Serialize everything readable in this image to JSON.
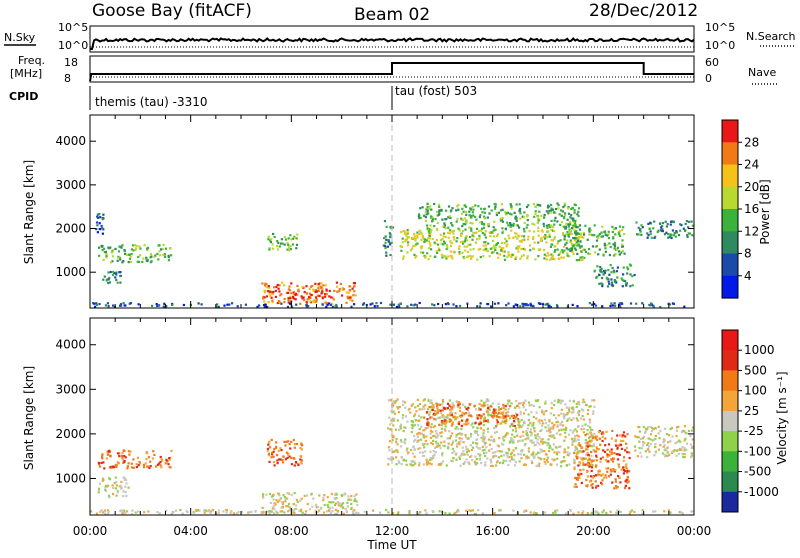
{
  "header": {
    "station": "Goose Bay (fitACF)",
    "beam": "Beam 02",
    "date": "28/Dec/2012"
  },
  "status_panels": {
    "nsky_label": "N.Sky",
    "nsearch_label": "N.Search",
    "freq_label_1": "Freq.",
    "freq_label_2": "[MHz]",
    "nave_label": "Nave",
    "cpid_label": "CPID",
    "noise_ticks": [
      "10^5",
      "10^0"
    ],
    "freq_ticks": [
      "18",
      "8"
    ],
    "nave_ticks": [
      "60",
      "0"
    ],
    "cpid_segments": [
      {
        "label": "themis (tau) -3310",
        "start_hour": 0,
        "end_hour": 12
      },
      {
        "label": "tau (fost) 503",
        "start_hour": 12,
        "end_hour": 24
      }
    ]
  },
  "chart_data": [
    {
      "type": "heatmap",
      "name": "power",
      "ylabel": "Slant Range [km]",
      "xlim": [
        0,
        24
      ],
      "ylim": [
        180,
        4600
      ],
      "colorbar_label": "Power [dB]",
      "colorbar_ticks": [
        "28",
        "24",
        "20",
        "16",
        "12",
        "8",
        "4"
      ],
      "colors": [
        "#0018e8",
        "#1c4aa8",
        "#2f8a5f",
        "#3bb33a",
        "#b9d930",
        "#f4c21a",
        "#f07a15",
        "#e81818"
      ],
      "regions": [
        {
          "t0": 0.3,
          "t1": 3.2,
          "r0": 1250,
          "r1": 1650,
          "level": 3
        },
        {
          "t0": 0.3,
          "t1": 1.2,
          "r0": 750,
          "r1": 1050,
          "level": 2
        },
        {
          "t0": 0.2,
          "t1": 0.5,
          "r0": 1900,
          "r1": 2400,
          "level": 1
        },
        {
          "t0": 6.8,
          "t1": 10.6,
          "r0": 300,
          "r1": 800,
          "level": 6
        },
        {
          "t0": 7.8,
          "t1": 9.6,
          "r0": 420,
          "r1": 620,
          "level": 7
        },
        {
          "t0": 7.0,
          "t1": 8.2,
          "r0": 1500,
          "r1": 1900,
          "level": 3
        },
        {
          "t0": 11.6,
          "t1": 12.0,
          "r0": 1400,
          "r1": 2200,
          "level": 2
        },
        {
          "t0": 12.3,
          "t1": 19.6,
          "r0": 1300,
          "r1": 2000,
          "level": 4
        },
        {
          "t0": 13.0,
          "t1": 19.4,
          "r0": 2000,
          "r1": 2600,
          "level": 3
        },
        {
          "t0": 18.8,
          "t1": 21.2,
          "r0": 1400,
          "r1": 2100,
          "level": 3
        },
        {
          "t0": 20.0,
          "t1": 21.6,
          "r0": 700,
          "r1": 1200,
          "level": 2
        },
        {
          "t0": 21.6,
          "t1": 24.0,
          "r0": 1800,
          "r1": 2200,
          "level": 2
        },
        {
          "t0": 0.0,
          "t1": 24.0,
          "r0": 200,
          "r1": 320,
          "level": 1
        }
      ]
    },
    {
      "type": "heatmap",
      "name": "velocity",
      "ylabel": "Slant Range [km]",
      "xlabel": "Time UT",
      "xlim": [
        0,
        24
      ],
      "ylim": [
        180,
        4600
      ],
      "colorbar_label": "Velocity [m s⁻¹]",
      "colorbar_ticks": [
        "1000",
        "500",
        "100",
        "25",
        "-25",
        "-100",
        "-500",
        "-1000"
      ],
      "colors": [
        "#1a2a9e",
        "#2a8a50",
        "#3bb33a",
        "#8fd24a",
        "#c8c8c0",
        "#f3a53a",
        "#f07a15",
        "#e02a18",
        "#e81818"
      ],
      "regions": [
        {
          "t0": 0.3,
          "t1": 3.2,
          "r0": 1250,
          "r1": 1650,
          "level": 6
        },
        {
          "t0": 0.3,
          "t1": 1.5,
          "r0": 600,
          "r1": 1050,
          "level": 4
        },
        {
          "t0": 6.8,
          "t1": 10.6,
          "r0": 250,
          "r1": 700,
          "level": 4
        },
        {
          "t0": 7.0,
          "t1": 8.4,
          "r0": 1300,
          "r1": 1900,
          "level": 6
        },
        {
          "t0": 11.8,
          "t1": 20.0,
          "r0": 1300,
          "r1": 2800,
          "level": 4
        },
        {
          "t0": 13.2,
          "t1": 17.0,
          "r0": 2200,
          "r1": 2700,
          "level": 6
        },
        {
          "t0": 19.2,
          "t1": 21.4,
          "r0": 800,
          "r1": 2100,
          "level": 6
        },
        {
          "t0": 21.6,
          "t1": 24.0,
          "r0": 1500,
          "r1": 2200,
          "level": 4
        },
        {
          "t0": 0.0,
          "t1": 24.0,
          "r0": 200,
          "r1": 320,
          "level": 4
        }
      ]
    }
  ],
  "axes": {
    "y_ticks": [
      "1000",
      "2000",
      "3000",
      "4000"
    ],
    "x_ticks": [
      "00:00",
      "04:00",
      "08:00",
      "12:00",
      "16:00",
      "20:00",
      "00:00"
    ]
  }
}
